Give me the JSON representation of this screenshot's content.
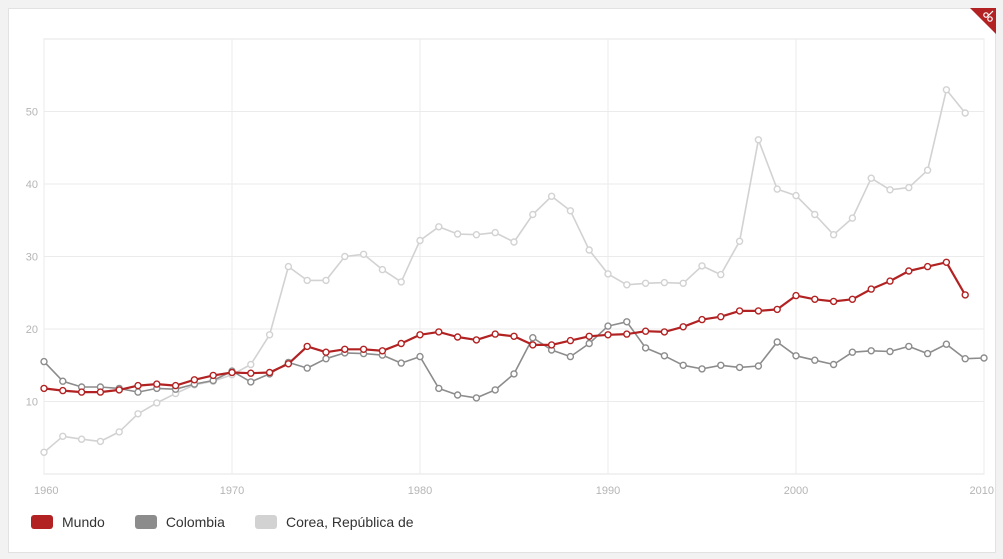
{
  "colors": {
    "mundo": "#b22222",
    "colombia": "#8c8c8c",
    "corea": "#d2d2d2"
  },
  "icons": {
    "corner": "scissors-icon"
  },
  "chart_data": {
    "type": "line",
    "title": "",
    "xlabel": "",
    "ylabel": "",
    "xlim": [
      1960,
      2010
    ],
    "ylim": [
      0,
      60
    ],
    "grid": true,
    "legend_position": "bottom-left",
    "x_ticks": [
      "1960",
      "1970",
      "1980",
      "1990",
      "2000",
      "2010"
    ],
    "y_ticks": [
      "10",
      "20",
      "30",
      "40",
      "50"
    ],
    "x": [
      1960,
      1961,
      1962,
      1963,
      1964,
      1965,
      1966,
      1967,
      1968,
      1969,
      1970,
      1971,
      1972,
      1973,
      1974,
      1975,
      1976,
      1977,
      1978,
      1979,
      1980,
      1981,
      1982,
      1983,
      1984,
      1985,
      1986,
      1987,
      1988,
      1989,
      1990,
      1991,
      1992,
      1993,
      1994,
      1995,
      1996,
      1997,
      1998,
      1999,
      2000,
      2001,
      2002,
      2003,
      2004,
      2005,
      2006,
      2007,
      2008,
      2009,
      2010
    ],
    "series": [
      {
        "name": "Mundo",
        "key": "mundo",
        "values": [
          11.8,
          11.5,
          11.3,
          11.3,
          11.6,
          12.2,
          12.4,
          12.2,
          13.0,
          13.6,
          14.0,
          13.9,
          14.0,
          15.2,
          17.6,
          16.8,
          17.2,
          17.2,
          17.0,
          18.0,
          19.2,
          19.6,
          18.9,
          18.5,
          19.3,
          19.0,
          17.8,
          17.8,
          18.4,
          19.0,
          19.2,
          19.3,
          19.7,
          19.6,
          20.3,
          21.3,
          21.7,
          22.5,
          22.5,
          22.7,
          24.6,
          24.1,
          23.8,
          24.1,
          25.5,
          26.6,
          28.0,
          28.6,
          29.2,
          24.7,
          null
        ]
      },
      {
        "name": "Colombia",
        "key": "colombia",
        "values": [
          15.5,
          12.8,
          12.0,
          12.0,
          11.8,
          11.3,
          11.8,
          11.7,
          12.4,
          12.9,
          14.2,
          12.7,
          13.8,
          15.4,
          14.6,
          15.9,
          16.7,
          16.6,
          16.4,
          15.3,
          16.2,
          11.8,
          10.9,
          10.5,
          11.6,
          13.8,
          18.8,
          17.1,
          16.2,
          18.0,
          20.4,
          21.0,
          17.4,
          16.3,
          15.0,
          14.5,
          15.0,
          14.7,
          14.9,
          18.2,
          16.3,
          15.7,
          15.1,
          16.8,
          17.0,
          16.9,
          17.6,
          16.6,
          17.9,
          15.9,
          16.0
        ]
      },
      {
        "name": "Corea, República de",
        "key": "corea",
        "values": [
          3.0,
          5.2,
          4.8,
          4.5,
          5.8,
          8.3,
          9.8,
          11.1,
          12.3,
          12.8,
          13.7,
          15.1,
          19.2,
          28.6,
          26.7,
          26.7,
          30.0,
          30.3,
          28.2,
          26.5,
          32.2,
          34.1,
          33.1,
          33.0,
          33.3,
          32.0,
          35.8,
          38.3,
          36.3,
          30.9,
          27.6,
          26.1,
          26.3,
          26.4,
          26.3,
          28.7,
          27.5,
          32.1,
          46.1,
          39.3,
          38.4,
          35.8,
          33.0,
          35.3,
          40.8,
          39.2,
          39.5,
          41.9,
          53.0,
          49.8,
          null
        ]
      }
    ]
  }
}
